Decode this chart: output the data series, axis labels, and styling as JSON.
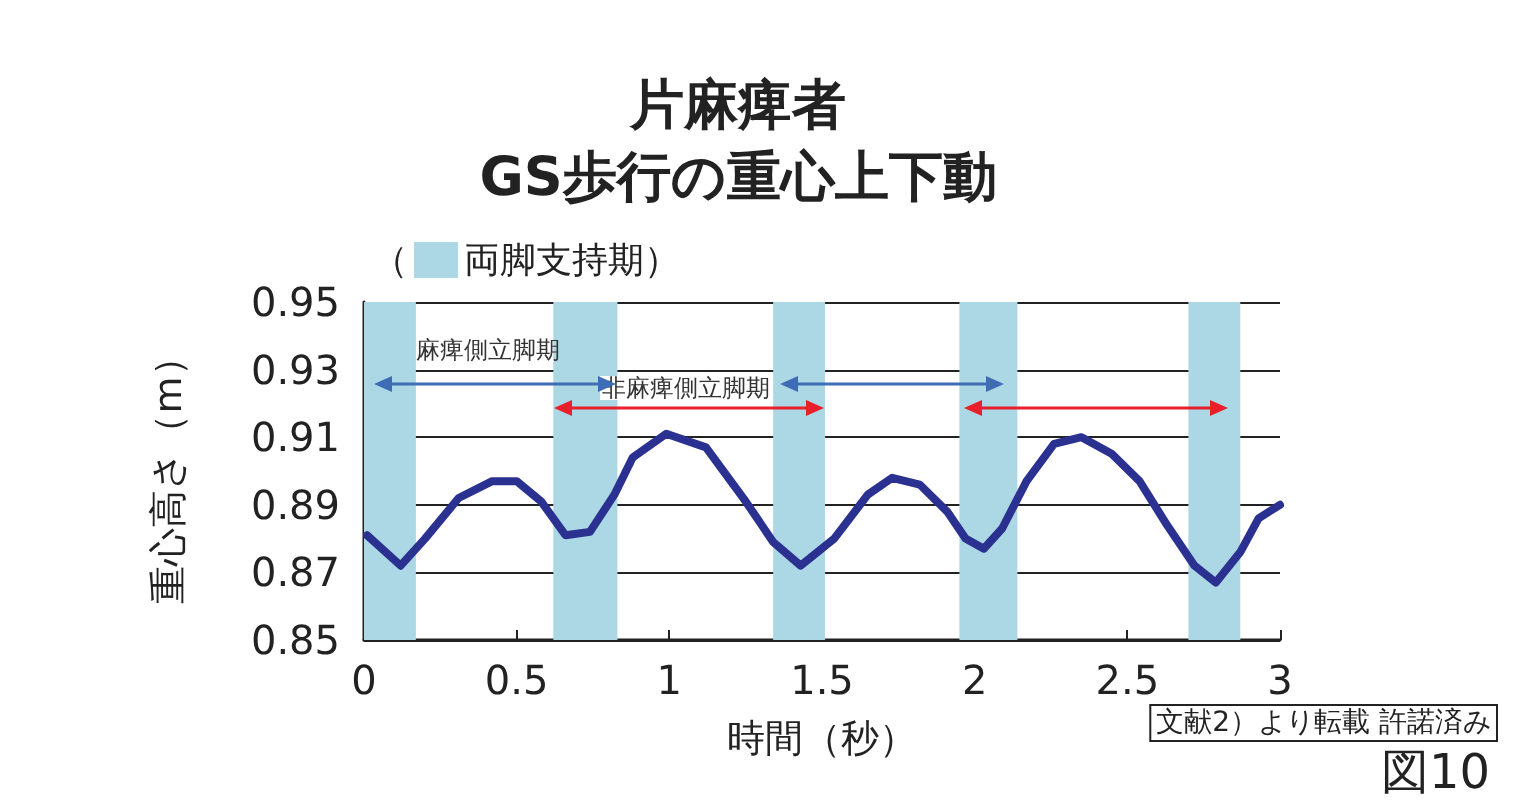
{
  "chart_data": {
    "type": "line",
    "title": "片麻痺者\nGS歩行の重心上下動",
    "xlabel": "時間（秒）",
    "ylabel": "重心高さ（m）",
    "xlim": [
      0,
      3
    ],
    "xticks": [
      0,
      0.5,
      1,
      1.5,
      2,
      2.5,
      3
    ],
    "ylim": [
      0.85,
      0.95
    ],
    "yticks": [
      0.85,
      0.87,
      0.89,
      0.91,
      0.93,
      0.95
    ],
    "grid": "y",
    "bands": [
      {
        "axis": "x",
        "from": 0,
        "to": 0.17,
        "label": "（両脚支持期）",
        "color": "#acd7e5"
      },
      {
        "axis": "x",
        "from": 0.62,
        "to": 0.83,
        "color": "#acd7e5"
      },
      {
        "axis": "x",
        "from": 1.34,
        "to": 1.51,
        "color": "#acd7e5"
      },
      {
        "axis": "x",
        "from": 1.95,
        "to": 2.14,
        "color": "#acd7e5"
      },
      {
        "axis": "x",
        "from": 2.7,
        "to": 2.87,
        "color": "#acd7e5"
      }
    ],
    "series": [
      {
        "color": "#2b3190",
        "marker": "none",
        "line_style": "solid",
        "x": [
          0.01,
          0.12,
          0.2,
          0.31,
          0.42,
          0.5,
          0.58,
          0.66,
          0.74,
          0.82,
          0.88,
          0.99,
          1.12,
          1.25,
          1.34,
          1.43,
          1.54,
          1.65,
          1.73,
          1.82,
          1.91,
          1.97,
          2.03,
          2.09,
          2.17,
          2.26,
          2.35,
          2.45,
          2.54,
          2.63,
          2.72,
          2.79,
          2.87,
          2.93,
          3.0
        ],
        "values": [
          0.881,
          0.872,
          0.88,
          0.892,
          0.897,
          0.897,
          0.891,
          0.881,
          0.882,
          0.893,
          0.904,
          0.911,
          0.907,
          0.891,
          0.879,
          0.872,
          0.88,
          0.893,
          0.898,
          0.896,
          0.888,
          0.88,
          0.877,
          0.883,
          0.897,
          0.908,
          0.91,
          0.905,
          0.897,
          0.884,
          0.872,
          0.867,
          0.876,
          0.886,
          0.89
        ]
      }
    ],
    "annotations": [
      "麻痺側立脚期",
      "非麻痺側立脚期",
      "文献2）より転載 許諾済み",
      "図10"
    ]
  }
}
